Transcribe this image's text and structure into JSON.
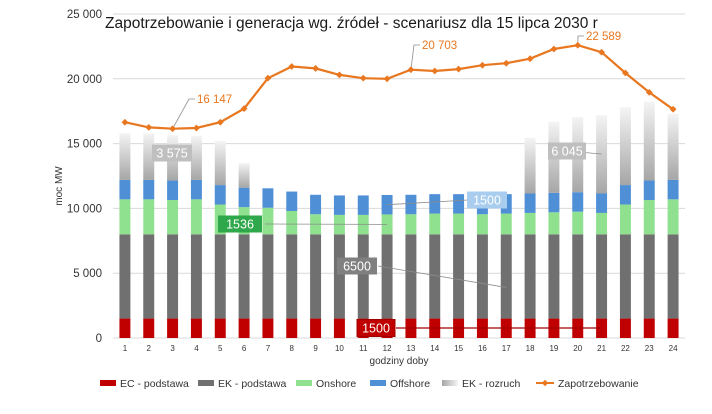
{
  "chart_data": {
    "type": "bar",
    "title": "Zapotrzebowanie i generacja  wg. źródeł - scenariusz dla 15 lipca 2030 r",
    "xlabel": "godziny doby",
    "ylabel": "moc MW",
    "ylim": [
      0,
      25000
    ],
    "yticks": [
      "0",
      "5 000",
      "10 000",
      "15 000",
      "20 000",
      "25 000"
    ],
    "ytick_values": [
      0,
      5000,
      10000,
      15000,
      20000,
      25000
    ],
    "categories": [
      "1",
      "2",
      "3",
      "4",
      "5",
      "6",
      "7",
      "8",
      "9",
      "10",
      "11",
      "12",
      "13",
      "14",
      "15",
      "16",
      "17",
      "18",
      "19",
      "20",
      "21",
      "22",
      "23",
      "24"
    ],
    "stacked": true,
    "grid": true,
    "legend_position": "bottom",
    "series": [
      {
        "name": "EC - podstawa",
        "type": "bar",
        "color": "#c00000",
        "values": [
          1500,
          1500,
          1500,
          1500,
          1500,
          1500,
          1500,
          1500,
          1500,
          1500,
          1500,
          1500,
          1500,
          1500,
          1500,
          1500,
          1500,
          1500,
          1500,
          1500,
          1500,
          1500,
          1500,
          1500
        ]
      },
      {
        "name": "EK - podstawa",
        "type": "bar",
        "color": "#707070",
        "values": [
          6500,
          6500,
          6500,
          6500,
          6500,
          6500,
          6500,
          6500,
          6500,
          6500,
          6500,
          6500,
          6500,
          6500,
          6500,
          6500,
          6500,
          6500,
          6500,
          6500,
          6500,
          6500,
          6500,
          6500
        ]
      },
      {
        "name": "Onshore",
        "type": "bar",
        "color": "#8fe08f",
        "values": [
          2700,
          2700,
          2650,
          2700,
          2300,
          2100,
          2050,
          1800,
          1550,
          1500,
          1500,
          1536,
          1550,
          1600,
          1600,
          1550,
          1600,
          1650,
          1700,
          1750,
          1650,
          2300,
          2650,
          2700
        ]
      },
      {
        "name": "Offshore",
        "type": "bar",
        "color": "#4f8fd6",
        "values": [
          1500,
          1500,
          1500,
          1500,
          1500,
          1500,
          1500,
          1500,
          1500,
          1500,
          1500,
          1500,
          1500,
          1500,
          1500,
          1500,
          1500,
          1500,
          1500,
          1500,
          1500,
          1500,
          1500,
          1500
        ]
      },
      {
        "name": "EK - rozruch",
        "type": "bar",
        "color": "#c8c8c8",
        "values": [
          3600,
          3600,
          3500,
          3400,
          3400,
          1900,
          0,
          0,
          0,
          0,
          0,
          0,
          0,
          0,
          0,
          0,
          0,
          4300,
          5500,
          5800,
          6045,
          6000,
          6100,
          5100
        ]
      },
      {
        "name": "Zapotrzebowanie",
        "type": "line",
        "color": "#e8771f",
        "values": [
          16650,
          16250,
          16147,
          16200,
          16650,
          17700,
          20050,
          20950,
          20800,
          20300,
          20050,
          20000,
          20703,
          20600,
          20750,
          21050,
          21200,
          21550,
          22300,
          22589,
          22050,
          20450,
          18950,
          17650
        ]
      }
    ],
    "annotations": [
      {
        "text": "16 147",
        "kind": "line-label"
      },
      {
        "text": "20 703",
        "kind": "line-label"
      },
      {
        "text": "22 589",
        "kind": "line-label"
      },
      {
        "text": "3 575",
        "kind": "box"
      },
      {
        "text": "6 045",
        "kind": "box"
      },
      {
        "text": "1500",
        "kind": "box"
      },
      {
        "text": "1536",
        "kind": "box"
      },
      {
        "text": "6500",
        "kind": "box"
      },
      {
        "text": "1500",
        "kind": "box"
      }
    ]
  }
}
